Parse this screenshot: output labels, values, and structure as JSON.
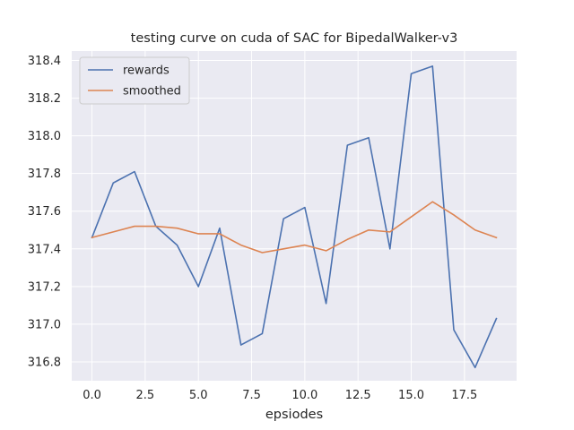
{
  "chart_data": {
    "type": "line",
    "title": "testing curve on cuda of SAC for BipedalWalker-v3",
    "xlabel": "epsiodes",
    "ylabel": "",
    "x": [
      0,
      1,
      2,
      3,
      4,
      5,
      6,
      7,
      8,
      9,
      10,
      11,
      12,
      13,
      14,
      15,
      16,
      17,
      18,
      19
    ],
    "series": [
      {
        "name": "rewards",
        "color": "#4c72b0",
        "values": [
          317.46,
          317.75,
          317.81,
          317.52,
          317.42,
          317.2,
          317.51,
          316.89,
          316.95,
          317.56,
          317.62,
          317.11,
          317.95,
          317.99,
          317.4,
          318.33,
          318.37,
          316.97,
          316.77,
          317.03
        ]
      },
      {
        "name": "smoothed",
        "color": "#dd8452",
        "values": [
          317.46,
          317.49,
          317.52,
          317.52,
          317.51,
          317.48,
          317.48,
          317.42,
          317.38,
          317.4,
          317.42,
          317.39,
          317.45,
          317.5,
          317.49,
          317.57,
          317.65,
          317.58,
          317.5,
          317.46
        ]
      }
    ],
    "xticks": [
      0.0,
      2.5,
      5.0,
      7.5,
      10.0,
      12.5,
      15.0,
      17.5
    ],
    "xtick_labels": [
      "0.0",
      "2.5",
      "5.0",
      "7.5",
      "10.0",
      "12.5",
      "15.0",
      "17.5"
    ],
    "yticks": [
      316.8,
      317.0,
      317.2,
      317.4,
      317.6,
      317.8,
      318.0,
      318.2,
      318.4
    ],
    "ytick_labels": [
      "316.8",
      "317.0",
      "317.2",
      "317.4",
      "317.6",
      "317.8",
      "318.0",
      "318.2",
      "318.4"
    ],
    "xlim": [
      -0.95,
      19.95
    ],
    "ylim": [
      316.7,
      318.45
    ],
    "grid": true,
    "legend_position": "top-left",
    "background_color": "#eaeaf2",
    "grid_color": "#ffffff"
  }
}
